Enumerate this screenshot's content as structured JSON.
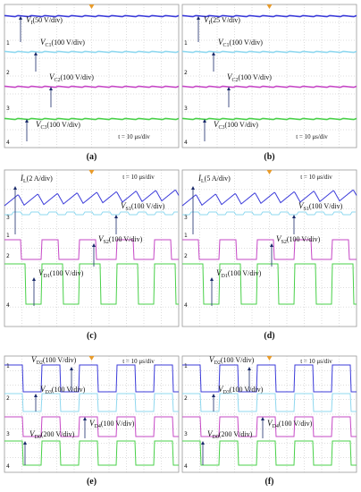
{
  "panels": [
    {
      "label": "(a)",
      "time_scale": "t = 10 μs/div",
      "markers": [
        "1",
        "2",
        "3",
        "4"
      ],
      "traces": [
        {
          "symbol": "V",
          "sub": "I",
          "scale": "(50 V/div)"
        },
        {
          "symbol": "V",
          "sub": "C1",
          "scale": "(100 V/div)"
        },
        {
          "symbol": "V",
          "sub": "C2",
          "scale": "(100 V/div)"
        },
        {
          "symbol": "V",
          "sub": "C3",
          "scale": "(100 V/div)"
        }
      ]
    },
    {
      "label": "(b)",
      "time_scale": "t = 10 μs/div",
      "markers": [
        "1",
        "2",
        "3",
        "4"
      ],
      "traces": [
        {
          "symbol": "V",
          "sub": "I",
          "scale": "(25 V/div)"
        },
        {
          "symbol": "V",
          "sub": "C1",
          "scale": "(100 V/div)"
        },
        {
          "symbol": "V",
          "sub": "C2",
          "scale": "(100 V/div)"
        },
        {
          "symbol": "V",
          "sub": "C3",
          "scale": "(100 V/div)"
        }
      ]
    },
    {
      "label": "(c)",
      "time_scale": "t = 10 μs/div",
      "markers": [
        "1",
        "3",
        "2",
        "4"
      ],
      "traces": [
        {
          "symbol": "I",
          "sub": "L",
          "scale": "(2 A/div)"
        },
        {
          "symbol": "V",
          "sub": "S1",
          "scale": "(100 V/div)"
        },
        {
          "symbol": "V",
          "sub": "S2",
          "scale": "(100 V/div)"
        },
        {
          "symbol": "V",
          "sub": "D1",
          "scale": "(100 V/div)"
        }
      ]
    },
    {
      "label": "(d)",
      "time_scale": "t = 10 μs/div",
      "markers": [
        "1",
        "3",
        "2",
        "4"
      ],
      "traces": [
        {
          "symbol": "I",
          "sub": "L",
          "scale": "(5 A/div)"
        },
        {
          "symbol": "V",
          "sub": "S1",
          "scale": "(100 V/div)"
        },
        {
          "symbol": "V",
          "sub": "S2",
          "scale": "(100 V/div)"
        },
        {
          "symbol": "V",
          "sub": "D1",
          "scale": "(100 V/div)"
        }
      ]
    },
    {
      "label": "(e)",
      "time_scale": "t = 10 μs/div",
      "markers": [
        "1",
        "2",
        "3",
        "4"
      ],
      "traces": [
        {
          "symbol": "V",
          "sub": "D2",
          "scale": "(100 V/div)"
        },
        {
          "symbol": "V",
          "sub": "D3",
          "scale": "(100 V/div)"
        },
        {
          "symbol": "V",
          "sub": "D4",
          "scale": "(100 V/div)"
        },
        {
          "symbol": "V",
          "sub": "D0",
          "scale": "(200 V/div)"
        }
      ]
    },
    {
      "label": "(f)",
      "time_scale": "t = 10 μs/div",
      "markers": [
        "1",
        "2",
        "3",
        "4"
      ],
      "traces": [
        {
          "symbol": "V",
          "sub": "D2",
          "scale": "(100 V/div)"
        },
        {
          "symbol": "V",
          "sub": "D3",
          "scale": "(100 V/div)"
        },
        {
          "symbol": "V",
          "sub": "D4",
          "scale": "(100 V/div)"
        },
        {
          "symbol": "V",
          "sub": "D0",
          "scale": "(200 V/div)"
        }
      ]
    }
  ]
}
